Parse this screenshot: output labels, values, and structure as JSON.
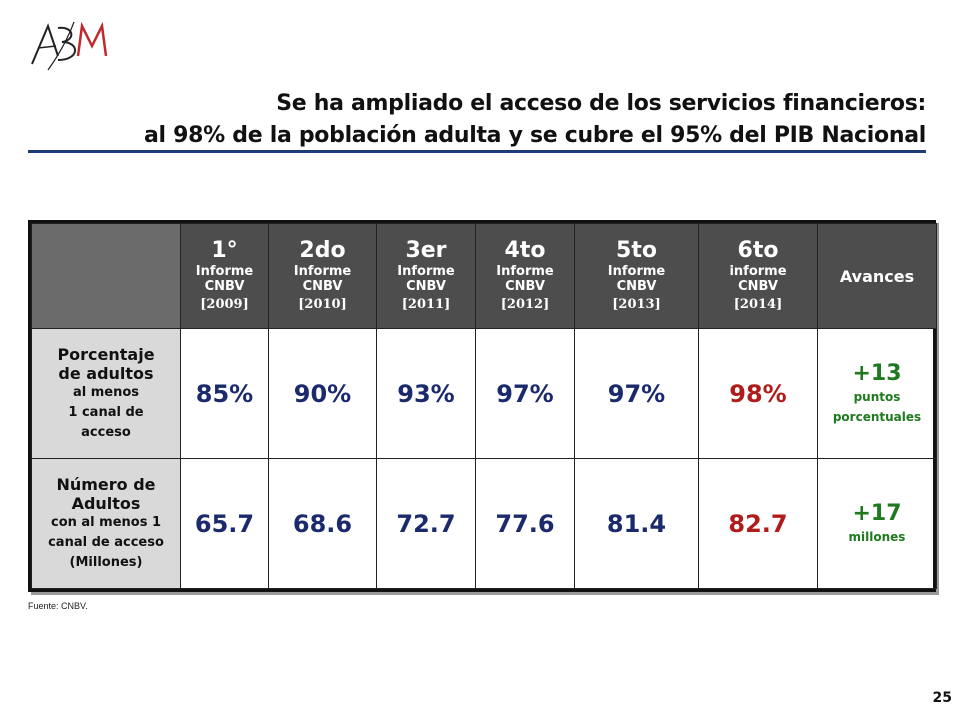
{
  "logo": {
    "text": "ABM"
  },
  "title": {
    "line1": "Se ha ampliado el acceso de los servicios financieros:",
    "line2": "al 98% de la población adulta y se cubre el 95% del PIB Nacional"
  },
  "table": {
    "headers": [
      {
        "big": "1°",
        "line1": "Informe",
        "line2": "CNBV",
        "year": "[2009]"
      },
      {
        "big": "2do",
        "line1": "Informe",
        "line2": "CNBV",
        "year": "[2010]"
      },
      {
        "big": "3er",
        "line1": "Informe",
        "line2": "CNBV",
        "year": "[2011]"
      },
      {
        "big": "4to",
        "line1": "Informe",
        "line2": "CNBV",
        "year": "[2012]"
      },
      {
        "big": "5to",
        "line1": "Informe",
        "line2": "CNBV",
        "year": "[2013]"
      },
      {
        "big": "6to",
        "line1": "informe",
        "line2": "CNBV",
        "year": "[2014]"
      }
    ],
    "advances_header": "Avances",
    "rows": [
      {
        "label_big1": "Porcentaje",
        "label_big2": "de adultos",
        "label_small1": "al menos",
        "label_small2": "1 canal de",
        "label_small3": "acceso",
        "values": [
          "85%",
          "90%",
          "93%",
          "97%",
          "97%",
          "98%"
        ],
        "advance_big": "+13",
        "advance_small1": "puntos",
        "advance_small2": "porcentuales"
      },
      {
        "label_big1": "Número de",
        "label_big2": "Adultos",
        "label_small1": "con al menos 1",
        "label_small2": "canal de acceso",
        "label_small3": "(Millones)",
        "values": [
          "65.7",
          "68.6",
          "72.7",
          "77.6",
          "81.4",
          "82.7"
        ],
        "advance_big": "+17",
        "advance_small1": "millones"
      }
    ]
  },
  "source": "Fuente: CNBV.",
  "page_number": "25",
  "colors": {
    "value_blue": "#1a2a6c",
    "value_red": "#b01c1c",
    "advance_green": "#1f7a1f",
    "header_gray": "#4d4d4d",
    "rule_blue": "#1f3a78"
  }
}
